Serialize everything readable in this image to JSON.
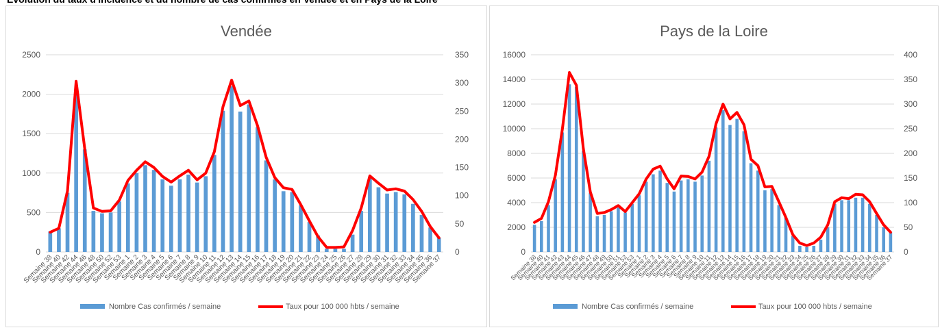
{
  "header_text": "Évolution du taux d'incidence et du nombre de cas confirmés en Vendée et en Pays de la Loire",
  "colors": {
    "bar": "#5b9bd5",
    "line": "#ff0000",
    "grid": "#d9d9d9",
    "text": "#595959"
  },
  "chart_data": [
    {
      "type": "bar",
      "title": "Vendée",
      "legend_position": "bottom",
      "grid": true,
      "categories": [
        "Semaine 38",
        "Semaine 40",
        "Semaine 42",
        "Semaine 44",
        "Semaine 46",
        "Semaine 48",
        "Semaine 50",
        "Semaine 52",
        "Semaine 53",
        "Semaine 1",
        "Semaine 2",
        "Semaine 3",
        "Semaine 4",
        "Semaine 5",
        "Semaine 6",
        "Semaine 7",
        "Semaine 8",
        "Semaine 9",
        "Semaine 10",
        "Semaine 11",
        "Semaine 12",
        "Semaine 13",
        "Semaine 14",
        "Semaine 15",
        "Semaine 16",
        "Semaine 17",
        "Semaine 18",
        "Semaine 19",
        "Semaine 20",
        "Semaine 21",
        "Semaine 22",
        "Semaine 23",
        "Semaine 24",
        "Semaine 25",
        "Semaine 26",
        "Semaine 27",
        "Semaine 28",
        "Semaine 29",
        "Semaine 30",
        "Semaine 31",
        "Semaine 32",
        "Semaine 33",
        "Semaine 34",
        "Semaine 35",
        "Semaine 36",
        "Semaine 37"
      ],
      "y_ticks": [
        "0",
        "500",
        "1000",
        "1500",
        "2000",
        "2500"
      ],
      "y2_ticks": [
        "0",
        "50",
        "100",
        "150",
        "200",
        "250",
        "300",
        "350"
      ],
      "ylim": [
        0,
        2500
      ],
      "y2lim": [
        0,
        350
      ],
      "series": [
        {
          "name": "Nombre Cas confirmés / semaine",
          "axis": "left",
          "kind": "bar",
          "values": [
            260,
            300,
            750,
            2000,
            1300,
            520,
            490,
            500,
            640,
            870,
            1000,
            1100,
            1040,
            920,
            840,
            920,
            980,
            880,
            960,
            1230,
            1790,
            2100,
            1780,
            1870,
            1580,
            1160,
            920,
            770,
            760,
            590,
            380,
            210,
            40,
            40,
            40,
            220,
            520,
            950,
            820,
            740,
            760,
            730,
            610,
            470,
            310,
            180
          ]
        },
        {
          "name": "Taux pour 100 000 hbts / semaine",
          "axis": "right",
          "kind": "line",
          "values": [
            35,
            42,
            108,
            303,
            183,
            78,
            72,
            73,
            92,
            127,
            145,
            160,
            150,
            134,
            124,
            135,
            145,
            128,
            140,
            178,
            258,
            305,
            260,
            268,
            224,
            168,
            132,
            114,
            111,
            84,
            55,
            27,
            8,
            8,
            9,
            38,
            78,
            135,
            122,
            110,
            112,
            108,
            93,
            72,
            45,
            25
          ]
        }
      ]
    },
    {
      "type": "bar",
      "title": "Pays de la Loire",
      "legend_position": "bottom",
      "grid": true,
      "categories": [
        "Semaine 38",
        "Semaine 40",
        "Semaine 41",
        "Semaine 42",
        "Semaine 43",
        "Semaine 44",
        "Semaine 45",
        "Semaine 46",
        "Semaine 47",
        "Semaine 48",
        "Semaine 49",
        "Semaine 50",
        "Semaine 51",
        "Semaine 52",
        "Semaine 53",
        "Semaine 1",
        "Semaine 2",
        "Semaine 3",
        "Semaine 4",
        "Semaine 5",
        "Semaine 6",
        "Semaine 7",
        "Semaine 8",
        "Semaine 9",
        "Semaine 10",
        "Semaine 11",
        "Semaine 12",
        "Semaine 13",
        "Semaine 14",
        "Semaine 15",
        "Semaine 16",
        "Semaine 17",
        "Semaine 18",
        "Semaine 19",
        "Semaine 20",
        "Semaine 21",
        "Semaine 22",
        "Semaine 23",
        "Semaine 24",
        "Semaine 25",
        "Semaine 26",
        "Semaine 27",
        "Semaine 28",
        "Semaine 29",
        "Semaine 30",
        "Semaine 31",
        "Semaine 32",
        "Semaine 33",
        "Semaine 34",
        "Semaine 35",
        "Semaine 36",
        "Semaine 37"
      ],
      "y_ticks": [
        "0",
        "2000",
        "4000",
        "6000",
        "8000",
        "10000",
        "12000",
        "14000",
        "16000"
      ],
      "y2_ticks": [
        "0",
        "50",
        "100",
        "150",
        "200",
        "250",
        "300",
        "350",
        "400"
      ],
      "ylim": [
        0,
        16000
      ],
      "y2lim": [
        0,
        400
      ],
      "series": [
        {
          "name": "Nombre Cas confirmés / semaine",
          "axis": "left",
          "kind": "bar",
          "values": [
            2200,
            2500,
            3800,
            5900,
            9700,
            13600,
            13400,
            8200,
            4800,
            2900,
            3000,
            3300,
            3600,
            3200,
            3900,
            4600,
            5700,
            6300,
            6600,
            5600,
            4900,
            5800,
            5900,
            5700,
            6200,
            7400,
            10100,
            11500,
            10300,
            10800,
            9800,
            7200,
            6600,
            5000,
            5100,
            3800,
            2800,
            1300,
            500,
            400,
            500,
            1000,
            2000,
            3900,
            4200,
            4200,
            4400,
            4400,
            3900,
            3000,
            2000,
            1600
          ]
        },
        {
          "name": "Taux pour 100 000 hbts / semaine",
          "axis": "right",
          "kind": "line",
          "values": [
            60,
            68,
            102,
            156,
            250,
            364,
            338,
            210,
            122,
            78,
            80,
            86,
            94,
            82,
            100,
            118,
            148,
            168,
            174,
            148,
            128,
            154,
            153,
            148,
            162,
            194,
            260,
            300,
            270,
            283,
            258,
            188,
            175,
            132,
            133,
            102,
            70,
            35,
            18,
            13,
            18,
            30,
            55,
            102,
            110,
            108,
            117,
            116,
            102,
            78,
            55,
            40
          ]
        }
      ]
    }
  ]
}
